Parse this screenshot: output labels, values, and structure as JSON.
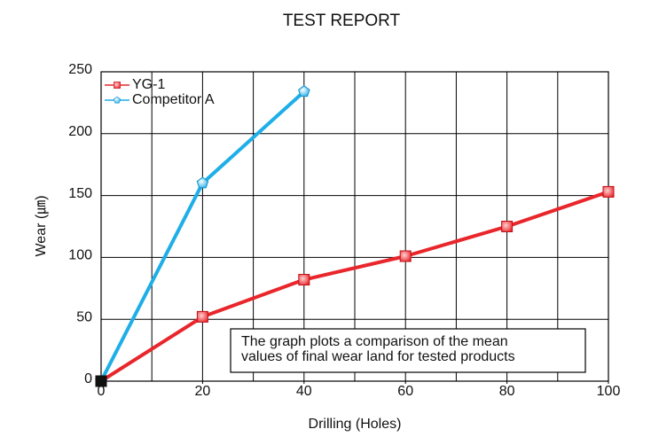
{
  "chart_data": {
    "type": "line",
    "title": "TEST REPORT",
    "x_label": "Drilling (Holes)",
    "y_label": "Wear (㎛)",
    "annotation": [
      "The graph plots a comparison of the mean",
      "values of final wear land for tested products"
    ],
    "series": [
      {
        "name": "YG-1",
        "color": "#e8262b",
        "x": [
          0,
          20,
          40,
          60,
          80,
          100
        ],
        "values": [
          0,
          52,
          82,
          101,
          125,
          153
        ]
      },
      {
        "name": "Competitor A",
        "color": "#1eaee8",
        "x": [
          0,
          20,
          40
        ],
        "values": [
          0,
          160,
          234
        ]
      }
    ],
    "xlim": [
      0,
      100
    ],
    "xticks": [
      0,
      20,
      40,
      60,
      80,
      100
    ],
    "x_grid": [
      10,
      20,
      30,
      40,
      50,
      60,
      70,
      80,
      90
    ],
    "ylim": [
      0,
      250
    ],
    "yticks": [
      0,
      50,
      100,
      150,
      200,
      250
    ],
    "grid": true,
    "legend": "upper left"
  }
}
